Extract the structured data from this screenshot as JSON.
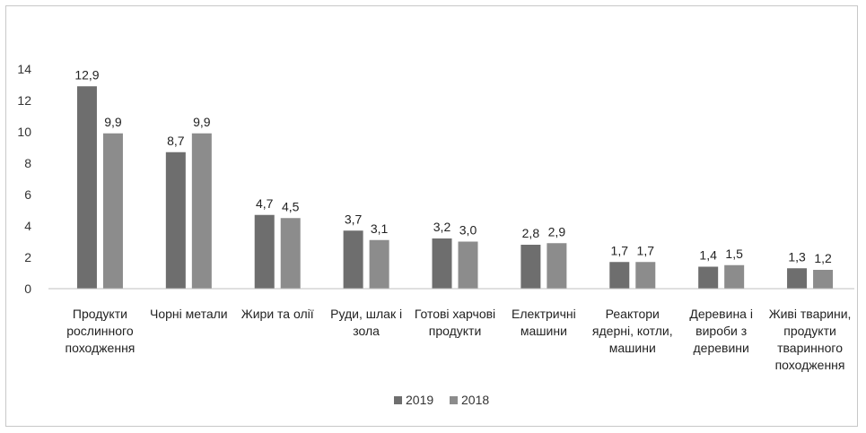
{
  "chart_data": {
    "type": "bar",
    "title": "",
    "xlabel": "",
    "ylabel": "",
    "ylim": [
      0,
      14
    ],
    "yticks": [
      0,
      2,
      4,
      6,
      8,
      10,
      12,
      14
    ],
    "grid": false,
    "legend_position": "bottom",
    "categories": [
      [
        "Продукти",
        "рослинного",
        "походження"
      ],
      [
        "Чорні метали"
      ],
      [
        "Жири та олії"
      ],
      [
        "Руди, шлак і",
        "зола"
      ],
      [
        "Готові харчові",
        "продукти"
      ],
      [
        "Електричні",
        "машини"
      ],
      [
        "Реактори",
        "ядерні, котли,",
        "машини"
      ],
      [
        "Деревина і",
        "вироби з",
        "деревини"
      ],
      [
        "Живі тварини,",
        "продукти",
        "тваринного",
        "походження"
      ]
    ],
    "series": [
      {
        "name": "2019",
        "color": "#6e6e6e",
        "values": [
          12.9,
          8.7,
          4.7,
          3.7,
          3.2,
          2.8,
          1.7,
          1.4,
          1.3
        ],
        "labels": [
          "12,9",
          "8,7",
          "4,7",
          "3,7",
          "3,2",
          "2,8",
          "1,7",
          "1,4",
          "1,3"
        ]
      },
      {
        "name": "2018",
        "color": "#8c8c8c",
        "values": [
          9.9,
          9.9,
          4.5,
          3.1,
          3.0,
          2.9,
          1.7,
          1.5,
          1.2
        ],
        "labels": [
          "9,9",
          "9,9",
          "4,5",
          "3,1",
          "3,0",
          "2,9",
          "1,7",
          "1,5",
          "1,2"
        ]
      }
    ]
  }
}
